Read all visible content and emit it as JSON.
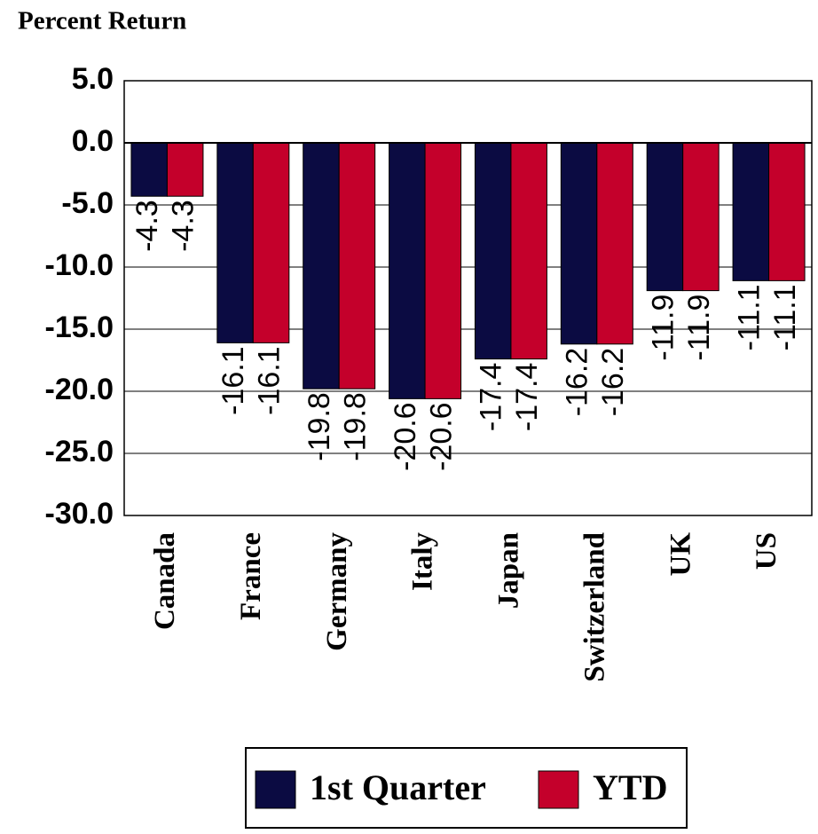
{
  "chart_data": {
    "type": "bar",
    "title": "Percent Return",
    "categories": [
      "Canada",
      "France",
      "Germany",
      "Italy",
      "Japan",
      "Switzerland",
      "UK",
      "US"
    ],
    "series": [
      {
        "name": "1st Quarter",
        "color": "#0b0b42",
        "values": [
          -4.3,
          -16.1,
          -19.8,
          -20.6,
          -17.4,
          -16.2,
          -11.9,
          -11.1
        ]
      },
      {
        "name": "YTD",
        "color": "#c4002b",
        "values": [
          -4.3,
          -16.1,
          -19.8,
          -20.6,
          -17.4,
          -16.2,
          -11.9,
          -11.1
        ]
      }
    ],
    "ylim": [
      -30,
      5
    ],
    "yticks": [
      {
        "value": 5,
        "label": "5.0"
      },
      {
        "value": 0,
        "label": "0.0"
      },
      {
        "value": -5,
        "label": "-5.0"
      },
      {
        "value": -10,
        "label": "-10.0"
      },
      {
        "value": -15,
        "label": "-15.0"
      },
      {
        "value": -20,
        "label": "-20.0"
      },
      {
        "value": -25,
        "label": "-25.0"
      },
      {
        "value": -30,
        "label": "-30.0"
      }
    ],
    "grid": true,
    "legend": "bottom"
  }
}
